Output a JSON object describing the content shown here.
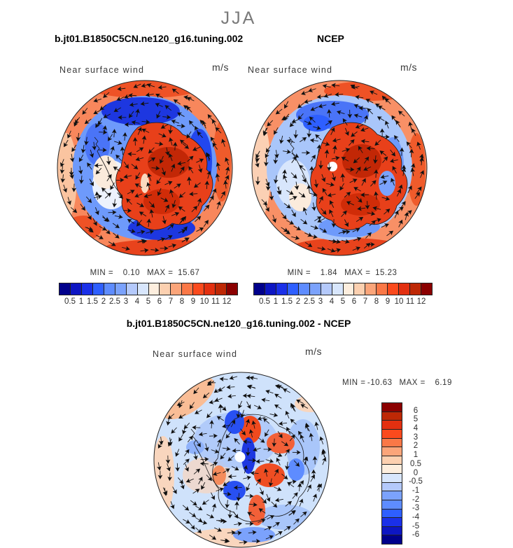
{
  "header": {
    "season": "JJA"
  },
  "panels": {
    "model": {
      "title": "b.jt01.B1850C5CN.ne120_g16.tuning.002",
      "field_label": "Near surface wind",
      "units": "m/s",
      "min_prefix": "MIN =",
      "min": "0.10",
      "max_prefix": "MAX =",
      "max": "15.67"
    },
    "obs": {
      "title": "NCEP",
      "field_label": "Near surface wind",
      "units": "m/s",
      "min_prefix": "MIN =",
      "min": "1.84",
      "max_prefix": "MAX =",
      "max": "15.23"
    },
    "diff": {
      "title": "b.jt01.B1850C5CN.ne120_g16.tuning.002 - NCEP",
      "field_label": "Near surface wind",
      "units": "m/s",
      "min_prefix": "MIN =",
      "min": "-10.63",
      "max_prefix": "MAX =",
      "max": "6.19"
    }
  },
  "speed_colorbar": {
    "labels": [
      "0.5",
      "1",
      "1.5",
      "2",
      "2.5",
      "3",
      "4",
      "5",
      "6",
      "7",
      "8",
      "9",
      "10",
      "11",
      "12"
    ],
    "colors": [
      "#00008B",
      "#0D16C3",
      "#1A30E8",
      "#2E5FFF",
      "#5E8CFF",
      "#7BA2FC",
      "#B4C9FB",
      "#D8E6FC",
      "#FDEEDE",
      "#FCD0B0",
      "#FBA57A",
      "#FA7847",
      "#FB4A1D",
      "#E33010",
      "#BE2805",
      "#8B0000"
    ]
  },
  "diff_colorbar": {
    "labels": [
      "6",
      "5",
      "4",
      "3",
      "2",
      "1",
      "0.5",
      "0",
      "-0.5",
      "-1",
      "-2",
      "-3",
      "-4",
      "-5",
      "-6"
    ],
    "colors": [
      "#8B0000",
      "#BE2805",
      "#E33010",
      "#FB4A1D",
      "#FA7847",
      "#FBA57A",
      "#FCD0B0",
      "#FDEEDE",
      "#D8E6FC",
      "#B4C9FB",
      "#7BA2FC",
      "#5E8CFF",
      "#2E5FFF",
      "#1A30E8",
      "#0D16C3",
      "#00008B"
    ]
  },
  "chart_data": [
    {
      "type": "heatmap",
      "subtype": "south-polar-stereographic contour map with wind vector overlay",
      "title": "b.jt01.B1850C5CN.ne120_g16.tuning.002",
      "season": "JJA",
      "variable": "Near surface wind",
      "units": "m/s",
      "min": 0.1,
      "max": 15.67,
      "contour_levels": [
        0.5,
        1,
        1.5,
        2,
        2.5,
        3,
        4,
        5,
        6,
        7,
        8,
        9,
        10,
        11,
        12
      ],
      "palette": [
        "#00008B",
        "#0D16C3",
        "#1A30E8",
        "#2E5FFF",
        "#5E8CFF",
        "#7BA2FC",
        "#B4C9FB",
        "#D8E6FC",
        "#FDEEDE",
        "#FCD0B0",
        "#FBA57A",
        "#FA7847",
        "#FB4A1D",
        "#E33010",
        "#BE2805",
        "#8B0000"
      ],
      "legend_position": "horizontal bar below map",
      "overlay": "black wind vectors, Antarctic coastline"
    },
    {
      "type": "heatmap",
      "subtype": "south-polar-stereographic contour map with wind vector overlay",
      "title": "NCEP",
      "season": "JJA",
      "variable": "Near surface wind",
      "units": "m/s",
      "min": 1.84,
      "max": 15.23,
      "contour_levels": [
        0.5,
        1,
        1.5,
        2,
        2.5,
        3,
        4,
        5,
        6,
        7,
        8,
        9,
        10,
        11,
        12
      ],
      "palette": [
        "#00008B",
        "#0D16C3",
        "#1A30E8",
        "#2E5FFF",
        "#5E8CFF",
        "#7BA2FC",
        "#B4C9FB",
        "#D8E6FC",
        "#FDEEDE",
        "#FCD0B0",
        "#FBA57A",
        "#FA7847",
        "#FB4A1D",
        "#E33010",
        "#BE2805",
        "#8B0000"
      ],
      "legend_position": "horizontal bar below map",
      "overlay": "black wind vectors, Antarctic coastline"
    },
    {
      "type": "heatmap",
      "subtype": "south-polar-stereographic difference contour map with wind vector overlay",
      "title": "b.jt01.B1850C5CN.ne120_g16.tuning.002 - NCEP",
      "season": "JJA",
      "variable": "Near surface wind",
      "units": "m/s",
      "min": -10.63,
      "max": 6.19,
      "contour_levels": [
        -6,
        -5,
        -4,
        -3,
        -2,
        -1,
        -0.5,
        0,
        0.5,
        1,
        2,
        3,
        4,
        5,
        6
      ],
      "palette": [
        "#00008B",
        "#0D16C3",
        "#1A30E8",
        "#2E5FFF",
        "#5E8CFF",
        "#7BA2FC",
        "#B4C9FB",
        "#D8E6FC",
        "#FDEEDE",
        "#FCD0B0",
        "#FBA57A",
        "#FA7847",
        "#FB4A1D",
        "#E33010",
        "#BE2805",
        "#8B0000"
      ],
      "legend_position": "vertical bar right of map",
      "overlay": "black wind vectors, Antarctic coastline"
    }
  ]
}
